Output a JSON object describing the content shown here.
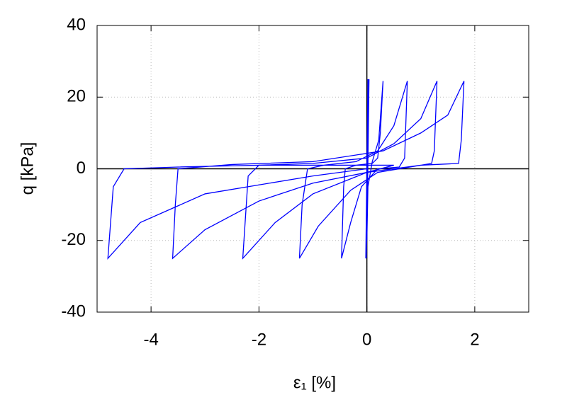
{
  "chart_data": {
    "type": "line",
    "xlabel": "ε₁ [%]",
    "ylabel": "q [kPa]",
    "xlim": [
      -5,
      3
    ],
    "xticks": [
      -4,
      -2,
      0,
      2
    ],
    "ylim": [
      -40,
      40
    ],
    "yticks": [
      -40,
      -20,
      0,
      20,
      40
    ],
    "grid": true,
    "zero_axes": true,
    "series": [
      {
        "color": "#0000ff",
        "x": [
          0,
          0.02,
          -0.02,
          0.03,
          -0.01,
          0.04,
          0,
          0.02,
          0.1,
          0.22,
          0.3,
          0.25,
          0.2,
          0.1,
          -0.2,
          -0.4,
          -0.43,
          -0.47,
          -0.3,
          -0.1,
          0.2,
          0.6,
          0.7,
          0.75,
          0.5,
          0.2,
          -0.2,
          -0.8,
          -1.1,
          -1.2,
          -1.25,
          -0.9,
          -0.3,
          0.2,
          0.8,
          1.2,
          1.25,
          1.3,
          1.0,
          0.5,
          0,
          -1,
          -2,
          -2.2,
          -2.3,
          -1.7,
          -1,
          0,
          1,
          1.7,
          1.75,
          1.8,
          1.5,
          1.0,
          0.3,
          -1,
          -2.5,
          -3.5,
          -3.55,
          -3.6,
          -3,
          -2,
          -1,
          0,
          0.5,
          0,
          -2,
          -3.5,
          -4.5,
          -4.7,
          -4.8,
          -4.2,
          -3,
          -1,
          0
        ],
        "y": [
          0,
          25,
          -25,
          25,
          -25,
          25,
          -20,
          -5,
          2,
          8,
          24.5,
          10,
          3,
          1.5,
          1,
          0,
          -5,
          -25,
          -15,
          -5,
          0,
          0.5,
          3,
          24.5,
          12,
          5,
          2,
          1,
          0,
          -10,
          -25,
          -16,
          -6,
          -1,
          0.5,
          1.5,
          5,
          24.5,
          14,
          7,
          3,
          1.5,
          1,
          -2,
          -25,
          -15,
          -7,
          -1,
          1,
          1.5,
          8,
          24.5,
          15,
          10,
          5,
          2,
          1.2,
          0,
          -10,
          -25,
          -17,
          -9,
          -4,
          -1,
          1,
          1,
          1,
          0.5,
          0,
          -5,
          -25,
          -15,
          -7,
          -2,
          0
        ]
      }
    ]
  }
}
